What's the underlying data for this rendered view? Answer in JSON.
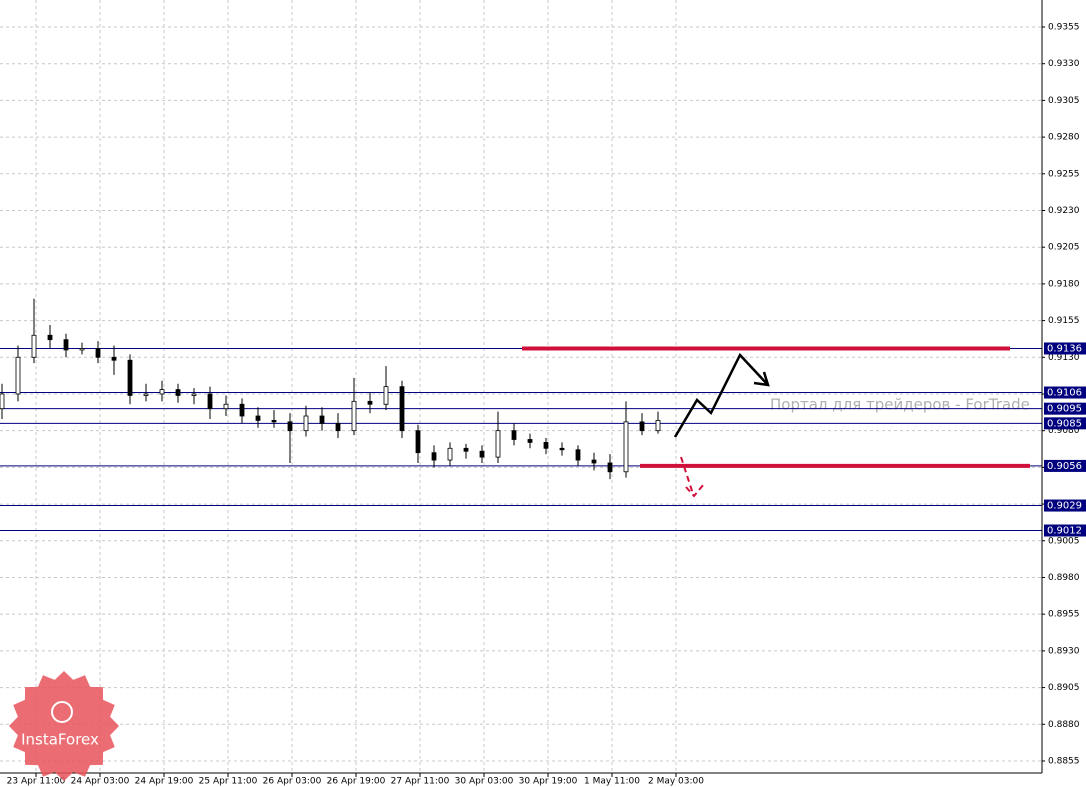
{
  "chart_data": {
    "type": "candlestick",
    "x": [
      0,
      4,
      8,
      12,
      16,
      20,
      24,
      28,
      32,
      36,
      40,
      44,
      48,
      52,
      56,
      60,
      64,
      68,
      72,
      76,
      80,
      84,
      88,
      92,
      96,
      100,
      104,
      108,
      112,
      116,
      120,
      124,
      128,
      132,
      136,
      140,
      144,
      148,
      152,
      156,
      160,
      164
    ],
    "open": [
      0.9095,
      0.9105,
      0.913,
      0.9145,
      0.9142,
      0.9135,
      0.9136,
      0.913,
      0.9128,
      0.9104,
      0.9105,
      0.9108,
      0.9104,
      0.9105,
      0.9095,
      0.9098,
      0.909,
      0.9087,
      0.9086,
      0.908,
      0.909,
      0.9085,
      0.908,
      0.91,
      0.9098,
      0.911,
      0.908,
      0.9065,
      0.906,
      0.9068,
      0.9066,
      0.9062,
      0.908,
      0.9074,
      0.9072,
      0.9068,
      0.9067,
      0.906,
      0.9058,
      0.9052,
      0.9086,
      0.908
    ],
    "high": [
      0.9112,
      0.9138,
      0.917,
      0.9152,
      0.9146,
      0.914,
      0.9141,
      0.9138,
      0.9132,
      0.9112,
      0.9114,
      0.9112,
      0.9109,
      0.911,
      0.9104,
      0.9102,
      0.9096,
      0.9094,
      0.9092,
      0.9097,
      0.9096,
      0.9092,
      0.9116,
      0.9106,
      0.9124,
      0.9114,
      0.9084,
      0.907,
      0.9072,
      0.9071,
      0.907,
      0.9093,
      0.9085,
      0.9078,
      0.9075,
      0.9072,
      0.907,
      0.9065,
      0.9064,
      0.91,
      0.9092,
      0.9093
    ],
    "low": [
      0.9088,
      0.91,
      0.9126,
      0.9136,
      0.913,
      0.9132,
      0.9126,
      0.9118,
      0.9098,
      0.91,
      0.91,
      0.9099,
      0.9098,
      0.9088,
      0.909,
      0.9085,
      0.9082,
      0.9082,
      0.9058,
      0.9076,
      0.908,
      0.9075,
      0.9077,
      0.9092,
      0.9094,
      0.9075,
      0.9058,
      0.9055,
      0.9056,
      0.9061,
      0.9058,
      0.9058,
      0.907,
      0.9068,
      0.9064,
      0.9063,
      0.9056,
      0.9053,
      0.9047,
      0.9048,
      0.9077,
      0.9078
    ],
    "close": [
      0.9105,
      0.913,
      0.9145,
      0.9142,
      0.9135,
      0.9136,
      0.913,
      0.9128,
      0.9104,
      0.9105,
      0.9108,
      0.9104,
      0.9105,
      0.9095,
      0.9098,
      0.909,
      0.9087,
      0.9086,
      0.908,
      0.909,
      0.9085,
      0.908,
      0.91,
      0.9098,
      0.911,
      0.908,
      0.9065,
      0.906,
      0.9068,
      0.9066,
      0.9062,
      0.908,
      0.9074,
      0.9072,
      0.9068,
      0.9067,
      0.906,
      0.9058,
      0.9052,
      0.9086,
      0.908,
      0.9087
    ],
    "xlim": [
      0,
      260.5
    ],
    "ylim": [
      0.88468,
      0.93734
    ],
    "xticks": [
      {
        "value": 9,
        "label": "23 Apr 11:00"
      },
      {
        "value": 25,
        "label": "24 Apr 03:00"
      },
      {
        "value": 41,
        "label": "24 Apr 19:00"
      },
      {
        "value": 57,
        "label": "25 Apr 11:00"
      },
      {
        "value": 73,
        "label": "26 Apr 03:00"
      },
      {
        "value": 89,
        "label": "26 Apr 19:00"
      },
      {
        "value": 105,
        "label": "27 Apr 11:00"
      },
      {
        "value": 121,
        "label": "30 Apr 03:00"
      },
      {
        "value": 137,
        "label": "30 Apr 19:00"
      },
      {
        "value": 153,
        "label": "1 May 11:00"
      },
      {
        "value": 169,
        "label": "2 May 03:00"
      }
    ],
    "yticks": [
      0.9355,
      {
        "value": 0.933,
        "label": "0.9330"
      },
      0.9305,
      {
        "value": 0.928,
        "label": "0.9280"
      },
      0.9255,
      {
        "value": 0.923,
        "label": "0.9230"
      },
      0.9205,
      {
        "value": 0.918,
        "label": "0.9180"
      },
      0.9155,
      {
        "value": 0.913,
        "label": "0.9130"
      },
      0.9105,
      {
        "value": 0.908,
        "label": "0.9080"
      },
      0.9055,
      {
        "value": 0.903,
        "label": "0.9030"
      },
      0.9005,
      {
        "value": 0.898,
        "label": "0.8980"
      },
      0.8955,
      {
        "value": 0.893,
        "label": "0.8930"
      },
      0.8905,
      {
        "value": 0.888,
        "label": "0.8880"
      },
      0.8855
    ],
    "grid": true,
    "levels": [
      0.9136,
      0.9106,
      0.9095,
      0.9085,
      0.9056,
      0.9029,
      0.9012
    ],
    "level_color": "#00007f",
    "segments": [
      {
        "value": 0.9136,
        "x": [
          130.5,
          252.5
        ]
      },
      {
        "value": 0.9056,
        "x": [
          160,
          257.5
        ]
      }
    ],
    "segment_color": "#d0103a",
    "watermark": "Портал для трейдеров - ForTrade",
    "logo_text": "InstaForex"
  }
}
